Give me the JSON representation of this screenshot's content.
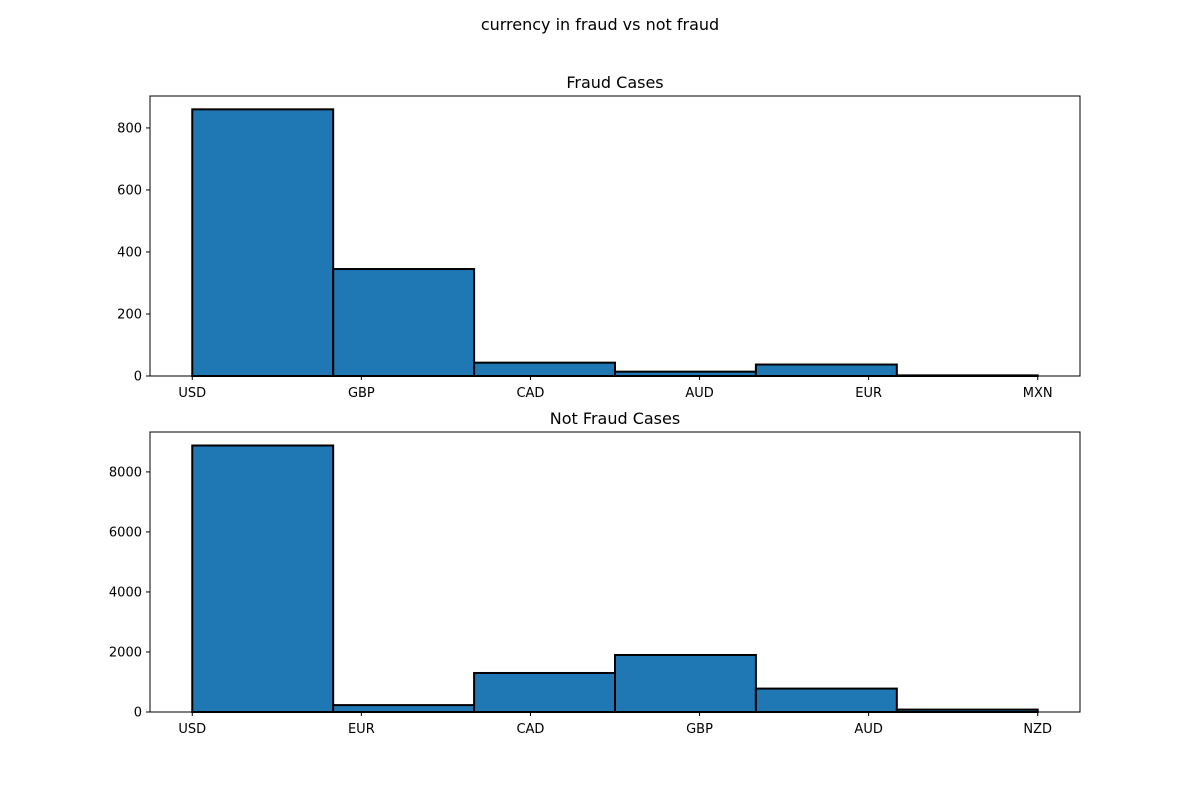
{
  "figure": {
    "suptitle": "currency in fraud vs not fraud"
  },
  "chart_data": [
    {
      "type": "bar",
      "title": "Fraud Cases",
      "xlabel": "",
      "ylabel": "",
      "categories": [
        "USD",
        "GBP",
        "CAD",
        "AUD",
        "EUR",
        "MXN"
      ],
      "bins": [
        {
          "left": 0.0,
          "right": 0.8333,
          "value": 860
        },
        {
          "left": 0.8333,
          "right": 1.6667,
          "value": 345
        },
        {
          "left": 1.6667,
          "right": 2.5,
          "value": 43
        },
        {
          "left": 2.5,
          "right": 3.3333,
          "value": 14
        },
        {
          "left": 3.3333,
          "right": 4.1667,
          "value": 37
        },
        {
          "left": 4.1667,
          "right": 5.0,
          "value": 2
        }
      ],
      "xlim": [
        -0.25,
        5.25
      ],
      "ylim": [
        0,
        903
      ],
      "yticks": [
        0,
        200,
        400,
        600,
        800
      ],
      "ytick_labels": [
        "0",
        "200",
        "400",
        "600",
        "800"
      ],
      "bar_color": "#1f77b4",
      "edge_color": "#000000",
      "grid": false
    },
    {
      "type": "bar",
      "title": "Not Fraud Cases",
      "xlabel": "",
      "ylabel": "",
      "categories": [
        "USD",
        "EUR",
        "CAD",
        "GBP",
        "AUD",
        "NZD"
      ],
      "bins": [
        {
          "left": 0.0,
          "right": 0.8333,
          "value": 8880
        },
        {
          "left": 0.8333,
          "right": 1.6667,
          "value": 230
        },
        {
          "left": 1.6667,
          "right": 2.5,
          "value": 1300
        },
        {
          "left": 2.5,
          "right": 3.3333,
          "value": 1900
        },
        {
          "left": 3.3333,
          "right": 4.1667,
          "value": 780
        },
        {
          "left": 4.1667,
          "right": 5.0,
          "value": 80
        }
      ],
      "xlim": [
        -0.25,
        5.25
      ],
      "ylim": [
        0,
        9330
      ],
      "yticks": [
        0,
        2000,
        4000,
        6000,
        8000
      ],
      "ytick_labels": [
        "0",
        "2000",
        "4000",
        "6000",
        "8000"
      ],
      "bar_color": "#1f77b4",
      "edge_color": "#000000",
      "grid": false
    }
  ]
}
